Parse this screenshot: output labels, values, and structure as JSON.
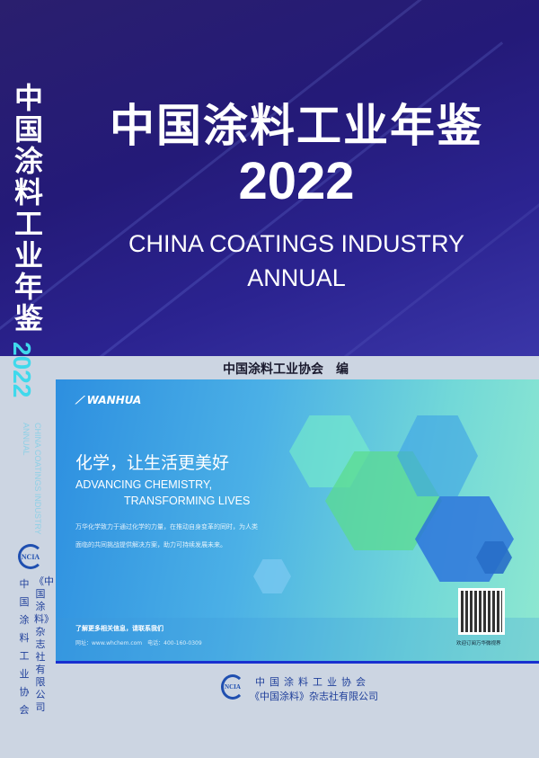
{
  "cover": {
    "title_cn": "中国涂料工业年鉴",
    "year": "2022",
    "title_en_line1": "CHINA COATINGS INDUSTRY",
    "title_en_line2": "ANNUAL",
    "editor": "中国涂料工业协会　编",
    "colors": {
      "top_bg": "#241a78",
      "lower_bg": "#ccd5e2",
      "year_spine": "#3fd9ec",
      "publisher_text": "#1f3f9a"
    }
  },
  "spine": {
    "title_cn": "中国涂料工业年鉴",
    "year": "2022",
    "en_line1": "CHINA COATINGS INDUSTRY",
    "en_line2": "ANNUAL",
    "logo": "NCIA",
    "publisher1": "中国涂料工业协会",
    "publisher2": "《中国涂料》杂志社有限公司"
  },
  "ad": {
    "brand": "WANHUA",
    "headline": "化学，让生活更美好",
    "en_line1": "ADVANCING CHEMISTRY,",
    "en_line2": "TRANSFORMING LIVES",
    "para_line1": "万华化学致力于通过化学的力量，在推动自身变革的同时，为人类",
    "para_line2": "面临的共同挑战提供解决方案，助力可持续发展未来。",
    "more": "了解更多相关信息，请联系我们",
    "contact": "网址：www.whchem.com　电话：400-160-0309",
    "qr_caption": "欢迎订阅万华微视界"
  },
  "footer": {
    "logo": "NCIA",
    "line1": "中国涂料工业协会",
    "line2": "《中国涂料》杂志社有限公司"
  }
}
